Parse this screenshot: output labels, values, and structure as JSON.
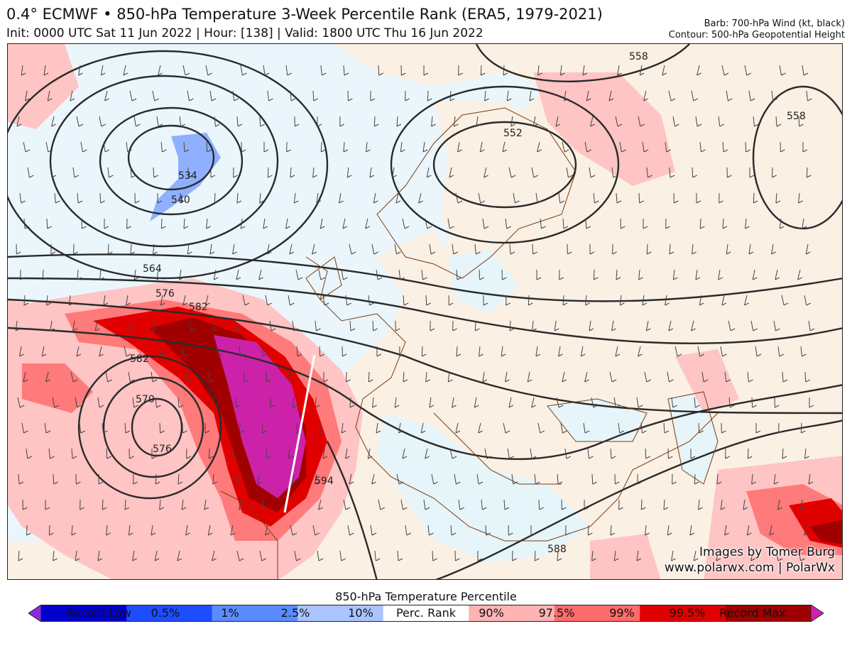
{
  "header": {
    "title": "0.4° ECMWF • 850-hPa Temperature 3-Week Percentile Rank (ERA5, 1979-2021)",
    "subtitle": "Init: 0000 UTC Sat 11 Jun 2022 | Hour: [138] | Valid: 1800 UTC Thu 16 Jun 2022",
    "barb_note": "Barb: 700-hPa Wind (kt, black)",
    "contour_note": "Contour: 500-hPa Geopotential Height"
  },
  "map": {
    "contour_labels": [
      "558",
      "558",
      "552",
      "534",
      "540",
      "564",
      "576",
      "582",
      "582",
      "570",
      "576",
      "594",
      "588"
    ],
    "credit_line1": "Images by Tomer Burg",
    "credit_line2": "www.polarwx.com | PolarWx"
  },
  "colorbar": {
    "title": "850-hPa Temperature Percentile",
    "labels": [
      "Record Low",
      "0.5%",
      "1%",
      "2.5%",
      "10%",
      "Perc. Rank",
      "90%",
      "97.5%",
      "99%",
      "99.5%",
      "Record Max"
    ],
    "colors": [
      "#8a2be2",
      "#0000cd",
      "#1e4cff",
      "#5a8cff",
      "#a9c4ff",
      "#ffffff",
      "#ffb3b3",
      "#ff6b6b",
      "#e00000",
      "#a00000",
      "#d020b0"
    ]
  }
}
